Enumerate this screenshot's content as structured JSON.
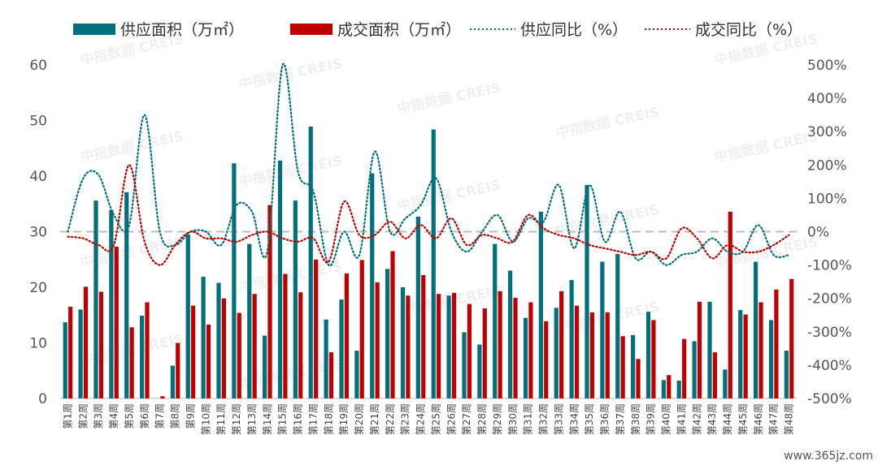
{
  "chart_data": {
    "type": "bar",
    "categories": [
      "第1周",
      "第2周",
      "第3周",
      "第4周",
      "第5周",
      "第6周",
      "第7周",
      "第8周",
      "第9周",
      "第10周",
      "第11周",
      "第12周",
      "第13周",
      "第14周",
      "第15周",
      "第16周",
      "第17周",
      "第18周",
      "第19周",
      "第20周",
      "第21周",
      "第22周",
      "第23周",
      "第24周",
      "第25周",
      "第26周",
      "第27周",
      "第28周",
      "第29周",
      "第30周",
      "第31周",
      "第32周",
      "第33周",
      "第34周",
      "第35周",
      "第36周",
      "第37周",
      "第38周",
      "第39周",
      "第40周",
      "第41周",
      "第42周",
      "第43周",
      "第44周",
      "第45周",
      "第46周",
      "第47周",
      "第48周"
    ],
    "series": [
      {
        "name": "供应面积（万㎡）",
        "type": "bar",
        "axis": "left",
        "color": "#00707a",
        "values": [
          13.7,
          16,
          35.6,
          33.9,
          37.1,
          14.9,
          0,
          5.9,
          29.5,
          21.9,
          20.8,
          42.3,
          27.8,
          11.3,
          42.8,
          35.6,
          48.9,
          14.2,
          17.8,
          8.6,
          40.5,
          23.3,
          20,
          32.7,
          48.4,
          18.5,
          11.9,
          9.7,
          27.8,
          23,
          14.5,
          33.6,
          16.3,
          21.3,
          38.4,
          24.6,
          26,
          11.4,
          15.6,
          3.3,
          3.2,
          10.3,
          17.4,
          5.2,
          15.9,
          24.6,
          14.1,
          8.6
        ]
      },
      {
        "name": "成交面积（万㎡）",
        "type": "bar",
        "axis": "left",
        "color": "#c00000",
        "values": [
          16.5,
          20.1,
          19.2,
          27.3,
          12.8,
          17.3,
          0.4,
          10,
          16.7,
          13.3,
          18,
          15.4,
          18.8,
          34.8,
          22.4,
          19.1,
          25,
          8.3,
          22.5,
          24.9,
          20.9,
          26.5,
          18.5,
          22.2,
          18.8,
          19,
          17,
          16.2,
          19.3,
          18.1,
          17.3,
          13.9,
          19.3,
          16.7,
          15.5,
          15.5,
          11.2,
          7.1,
          14.1,
          4.2,
          10.7,
          17.4,
          8.3,
          33.6,
          15.1,
          17.3,
          19.6,
          21.5
        ]
      },
      {
        "name": "供应同比（%）",
        "type": "line",
        "style": "dotted",
        "axis": "right",
        "color": "#00707a",
        "values": [
          0,
          160,
          170,
          50,
          20,
          350,
          0,
          -40,
          0,
          0,
          -40,
          80,
          60,
          -60,
          500,
          180,
          120,
          -100,
          0,
          -70,
          240,
          0,
          40,
          80,
          160,
          0,
          -60,
          0,
          50,
          -30,
          40,
          30,
          140,
          -50,
          140,
          -30,
          60,
          -80,
          -60,
          -100,
          -70,
          -60,
          -20,
          -60,
          -60,
          20,
          -70,
          -70
        ]
      },
      {
        "name": "成交同比（%）",
        "type": "line",
        "style": "dotted",
        "axis": "right",
        "color": "#c00000",
        "values": [
          -15,
          -20,
          -40,
          -40,
          200,
          -30,
          -100,
          -40,
          0,
          -20,
          -20,
          -30,
          -10,
          0,
          -20,
          -30,
          -20,
          -90,
          90,
          -10,
          -10,
          30,
          -20,
          20,
          -20,
          40,
          -40,
          -10,
          -20,
          -30,
          50,
          10,
          -10,
          -20,
          -40,
          -50,
          -60,
          -70,
          -60,
          -80,
          10,
          -20,
          -80,
          -40,
          -60,
          -60,
          -40,
          -10
        ]
      }
    ],
    "ylim_left": [
      0,
      60
    ],
    "ylim_right": [
      -500,
      500
    ],
    "yticks_left": [
      "0",
      "10",
      "20",
      "30",
      "40",
      "50",
      "60"
    ],
    "yticks_right": [
      "-500%",
      "-400%",
      "-300%",
      "-200%",
      "-100%",
      "0%",
      "100%",
      "200%",
      "300%",
      "400%",
      "500%"
    ],
    "reference_line": {
      "axis": "right",
      "value": 0,
      "color": "#bbbbbb",
      "style": "dashed"
    },
    "grid": false,
    "legend": "top-left",
    "title": "",
    "xlabel": "",
    "ylabel": ""
  },
  "watermark": "中指数据 CREIS",
  "site_label": "www.365jz.com"
}
